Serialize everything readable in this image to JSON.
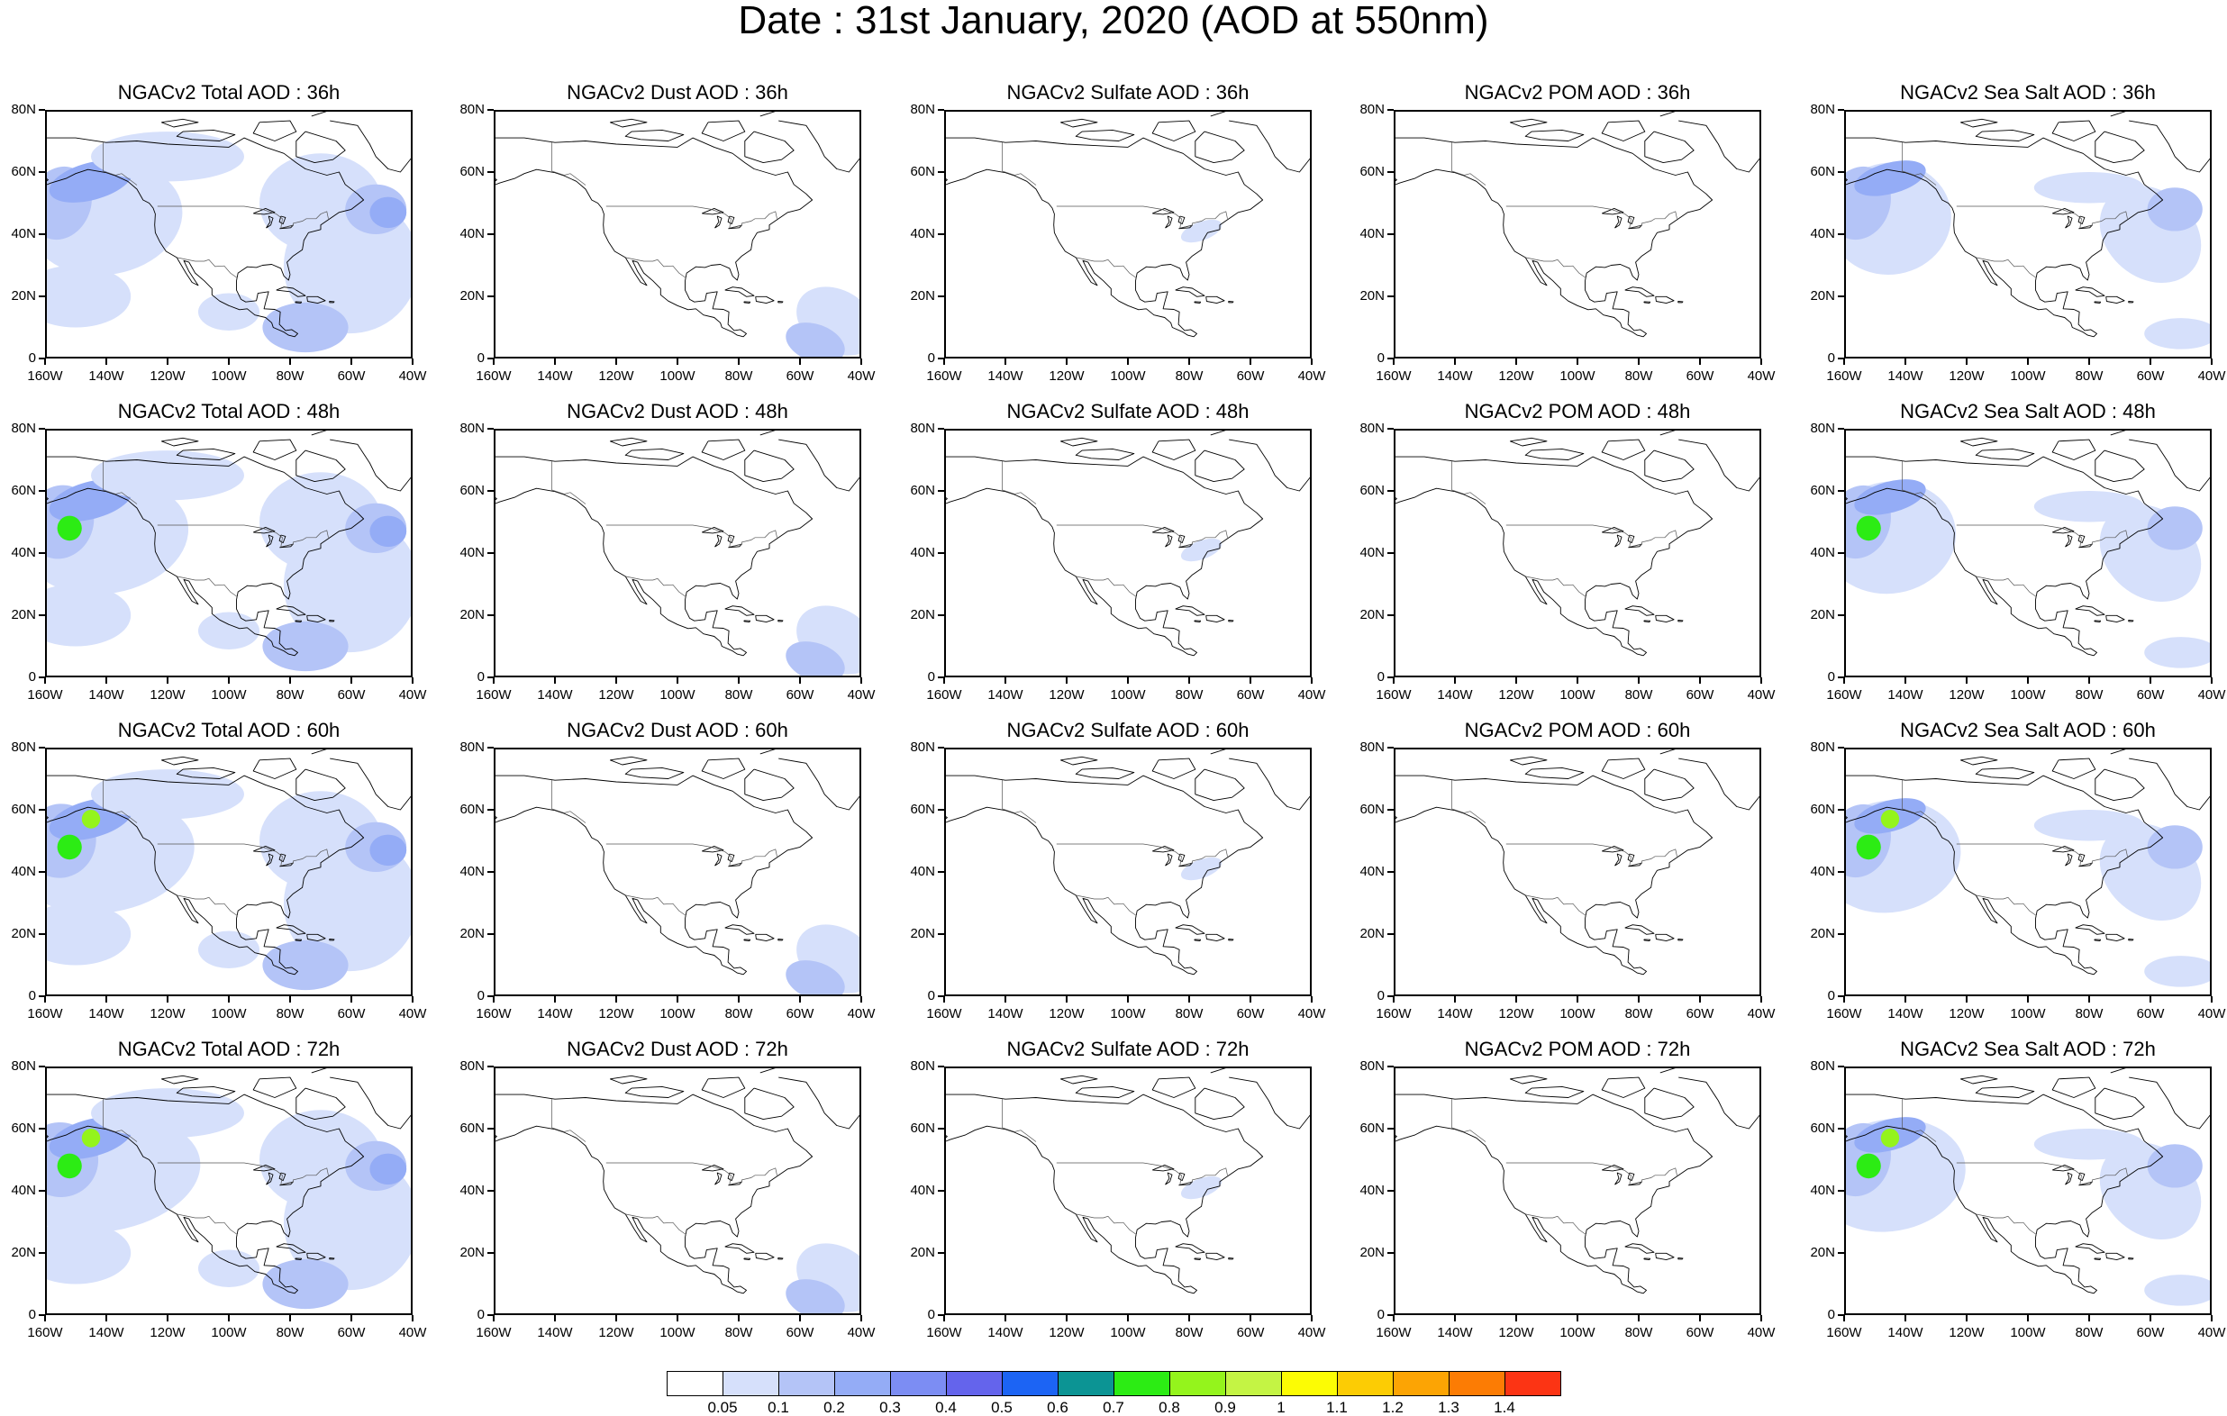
{
  "title": "Date : 31st January, 2020 (AOD at 550nm)",
  "y_tick_labels": [
    "80N",
    "60N",
    "40N",
    "20N",
    "0"
  ],
  "x_tick_labels": [
    "160W",
    "140W",
    "120W",
    "100W",
    "80W",
    "60W",
    "40W"
  ],
  "panels": [
    [
      {
        "title": "NGACv2 Total AOD : 36h",
        "type": "total"
      },
      {
        "title": "NGACv2 Dust AOD : 36h",
        "type": "dust"
      },
      {
        "title": "NGACv2 Sulfate AOD : 36h",
        "type": "sulfate"
      },
      {
        "title": "NGACv2 POM AOD : 36h",
        "type": "pom"
      },
      {
        "title": "NGACv2 Sea Salt AOD : 36h",
        "type": "seasalt"
      }
    ],
    [
      {
        "title": "NGACv2 Total AOD : 48h",
        "type": "total"
      },
      {
        "title": "NGACv2 Dust AOD : 48h",
        "type": "dust"
      },
      {
        "title": "NGACv2 Sulfate AOD : 48h",
        "type": "sulfate"
      },
      {
        "title": "NGACv2 POM AOD : 48h",
        "type": "pom"
      },
      {
        "title": "NGACv2 Sea Salt AOD : 48h",
        "type": "seasalt"
      }
    ],
    [
      {
        "title": "NGACv2 Total AOD : 60h",
        "type": "total"
      },
      {
        "title": "NGACv2 Dust AOD : 60h",
        "type": "dust"
      },
      {
        "title": "NGACv2 Sulfate AOD : 60h",
        "type": "sulfate"
      },
      {
        "title": "NGACv2 POM AOD : 60h",
        "type": "pom"
      },
      {
        "title": "NGACv2 Sea Salt AOD : 60h",
        "type": "seasalt"
      }
    ],
    [
      {
        "title": "NGACv2 Total AOD : 72h",
        "type": "total"
      },
      {
        "title": "NGACv2 Dust AOD : 72h",
        "type": "dust"
      },
      {
        "title": "NGACv2 Sulfate AOD : 72h",
        "type": "sulfate"
      },
      {
        "title": "NGACv2 POM AOD : 72h",
        "type": "pom"
      },
      {
        "title": "NGACv2 Sea Salt  AOD : 72h",
        "type": "seasalt"
      }
    ]
  ],
  "colorbar": {
    "colors": [
      "#ffffff",
      "#d6e0fb",
      "#b4c4f7",
      "#94acf6",
      "#7c8df3",
      "#6464ec",
      "#1c64f4",
      "#0c9494",
      "#2cec14",
      "#94f41c",
      "#c4f444",
      "#fcfc04",
      "#fccc04",
      "#fca404",
      "#fc7c04",
      "#fc3414"
    ],
    "labels": [
      "0.05",
      "0.1",
      "0.2",
      "0.3",
      "0.4",
      "0.5",
      "0.6",
      "0.7",
      "0.8",
      "0.9",
      "1",
      "1.1",
      "1.2",
      "1.3",
      "1.4"
    ]
  }
}
